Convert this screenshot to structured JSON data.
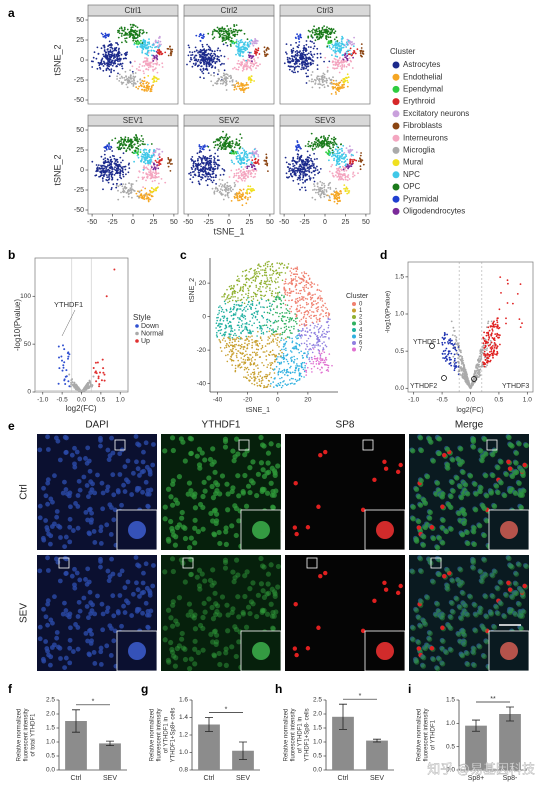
{
  "panel_a": {
    "label": "a",
    "titles": [
      "Ctrl1",
      "Ctrl2",
      "Ctrl3",
      "SEV1",
      "SEV2",
      "SEV3"
    ],
    "xlim": [
      -55,
      55
    ],
    "ylim": [
      -55,
      55
    ],
    "xticks": [
      -50,
      -25,
      0,
      25,
      50
    ],
    "yticks": [
      50,
      25,
      0,
      -25,
      -50
    ],
    "xlabel": "tSNE_1",
    "ylabel": "tSNE_2",
    "legend_title": "Cluster",
    "clusters": [
      {
        "name": "Astrocytes",
        "color": "#1c2a8c"
      },
      {
        "name": "Endothelial",
        "color": "#f5a623"
      },
      {
        "name": "Ependymal",
        "color": "#2ecc40"
      },
      {
        "name": "Erythroid",
        "color": "#d62728"
      },
      {
        "name": "Excitatory neurons",
        "color": "#c9a0dc"
      },
      {
        "name": "Fibroblasts",
        "color": "#8b4513"
      },
      {
        "name": "Interneurons",
        "color": "#f4a6c0"
      },
      {
        "name": "Microglia",
        "color": "#aaaaaa"
      },
      {
        "name": "Mural",
        "color": "#f0e020"
      },
      {
        "name": "NPC",
        "color": "#40c8e8"
      },
      {
        "name": "OPC",
        "color": "#1a7a1a"
      },
      {
        "name": "Pyramidal",
        "color": "#1f3fd0"
      },
      {
        "name": "Oligodendrocytes",
        "color": "#7b2a9a"
      }
    ]
  },
  "panel_b": {
    "label": "b",
    "ylabel": "-log10(Pvalue)",
    "xlabel": "log2(FC)",
    "xlim": [
      -1.2,
      1.2
    ],
    "ylim": [
      0,
      140
    ],
    "xticks": [
      {
        "value": -1,
        "label": "-1.0"
      },
      {
        "value": -0.5,
        "label": "-0.5"
      },
      {
        "value": 0,
        "label": "0.0"
      },
      {
        "value": 0.5,
        "label": "0.5"
      },
      {
        "value": 1,
        "label": "1.0"
      }
    ],
    "yticks": [
      0,
      50,
      100
    ],
    "annotation": "YTHDF1",
    "legend_title": "Style",
    "legend": [
      {
        "name": "Down",
        "color": "#3050d0"
      },
      {
        "name": "Normal",
        "color": "#aaaaaa"
      },
      {
        "name": "Up",
        "color": "#e03030"
      }
    ]
  },
  "panel_c": {
    "label": "c",
    "xlabel": "tSNE_1",
    "ylabel": "tSNE_2",
    "xlim": [
      -45,
      40
    ],
    "ylim": [
      -45,
      35
    ],
    "xticks": [
      -40,
      -20,
      0,
      20
    ],
    "yticks": [
      20,
      0,
      -20,
      -40
    ],
    "legend_title": "Cluster",
    "clusters": [
      {
        "name": "0",
        "color": "#f08070"
      },
      {
        "name": "1",
        "color": "#c8a030"
      },
      {
        "name": "2",
        "color": "#90b030"
      },
      {
        "name": "3",
        "color": "#30b060"
      },
      {
        "name": "4",
        "color": "#20b0a0"
      },
      {
        "name": "5",
        "color": "#30b0e0"
      },
      {
        "name": "6",
        "color": "#9080e0"
      },
      {
        "name": "7",
        "color": "#e070d0"
      }
    ]
  },
  "panel_d": {
    "label": "d",
    "ylabel": "-log10(Pvalue)",
    "xlabel": "log2(FC)",
    "xlim": [
      -1.1,
      1.1
    ],
    "ylim": [
      -0.05,
      1.7
    ],
    "xticks": [
      {
        "value": -1,
        "label": "-1.0"
      },
      {
        "value": -0.5,
        "label": "-0.5"
      },
      {
        "value": 0,
        "label": "0.0"
      },
      {
        "value": 0.5,
        "label": "0.5"
      },
      {
        "value": 1,
        "label": "1.0"
      }
    ],
    "yticks": [
      {
        "value": 0,
        "label": "0.0"
      },
      {
        "value": 0.5,
        "label": "0.5"
      },
      {
        "value": 1,
        "label": "1.0"
      },
      {
        "value": 1.5,
        "label": "1.5"
      }
    ],
    "annotations": [
      "YTHDF1",
      "YTHDF2",
      "YTHDF3"
    ]
  },
  "panel_e": {
    "label": "e",
    "columns": [
      "DAPI",
      "YTHDF1",
      "SP8",
      "Merge"
    ],
    "rows": [
      "Ctrl",
      "SEV"
    ]
  },
  "bar_panels": [
    {
      "label": "f",
      "ylabel": [
        "Relative normalized",
        "fluorescent intensity",
        "of total YTHDF1"
      ],
      "categories": [
        "Ctrl",
        "SEV"
      ],
      "values": [
        1.75,
        0.95
      ],
      "errors": [
        0.4,
        0.08
      ],
      "ylim": [
        0,
        2.5
      ],
      "significance": "*",
      "yticks": [
        {
          "value": 0,
          "label": "0.0"
        },
        {
          "value": 0.5,
          "label": "0.5"
        },
        {
          "value": 1,
          "label": "1.0"
        },
        {
          "value": 1.5,
          "label": "1.5"
        },
        {
          "value": 2,
          "label": "2.0"
        },
        {
          "value": 2.5,
          "label": "2.5"
        }
      ]
    },
    {
      "label": "g",
      "ylabel": [
        "Relative normalized",
        "fluorescent intensity",
        "of YTHDF1 in",
        "YTHDF1+Sp8+ cells"
      ],
      "categories": [
        "Ctrl",
        "SEV"
      ],
      "values": [
        1.32,
        1.02
      ],
      "errors": [
        0.08,
        0.1
      ],
      "ylim": [
        0.8,
        1.6
      ],
      "significance": "*",
      "yticks": [
        {
          "value": 0.8,
          "label": "0.8"
        },
        {
          "value": 1,
          "label": "1.0"
        },
        {
          "value": 1.2,
          "label": "1.2"
        },
        {
          "value": 1.4,
          "label": "1.4"
        },
        {
          "value": 1.6,
          "label": "1.6"
        }
      ]
    },
    {
      "label": "h",
      "ylabel": [
        "Relative normalized",
        "fluorescent intensity",
        "of YTHDF1 in",
        "YTHDF1+Sp8- cells"
      ],
      "categories": [
        "Ctrl",
        "SEV"
      ],
      "values": [
        1.9,
        1.05
      ],
      "errors": [
        0.45,
        0.05
      ],
      "ylim": [
        0,
        2.5
      ],
      "significance": "*",
      "yticks": [
        {
          "value": 0,
          "label": "0.0"
        },
        {
          "value": 0.5,
          "label": "0.5"
        },
        {
          "value": 1,
          "label": "1.0"
        },
        {
          "value": 1.5,
          "label": "1.5"
        },
        {
          "value": 2,
          "label": "2.0"
        },
        {
          "value": 2.5,
          "label": "2.5"
        }
      ]
    },
    {
      "label": "i",
      "ylabel": [
        "Relative normalized",
        "fluorescent intensity",
        "of YTHDF1"
      ],
      "categories": [
        "Sp8+",
        "Sp8-"
      ],
      "values": [
        0.95,
        1.2
      ],
      "errors": [
        0.12,
        0.15
      ],
      "ylim": [
        0,
        1.5
      ],
      "significance": "**",
      "yticks": [
        {
          "value": 0,
          "label": "0.0"
        },
        {
          "value": 0.5,
          "label": "0.5"
        },
        {
          "value": 1,
          "label": "1.0"
        },
        {
          "value": 1.5,
          "label": "1.5"
        }
      ]
    }
  ],
  "watermark": "知乎 @易基因科技"
}
